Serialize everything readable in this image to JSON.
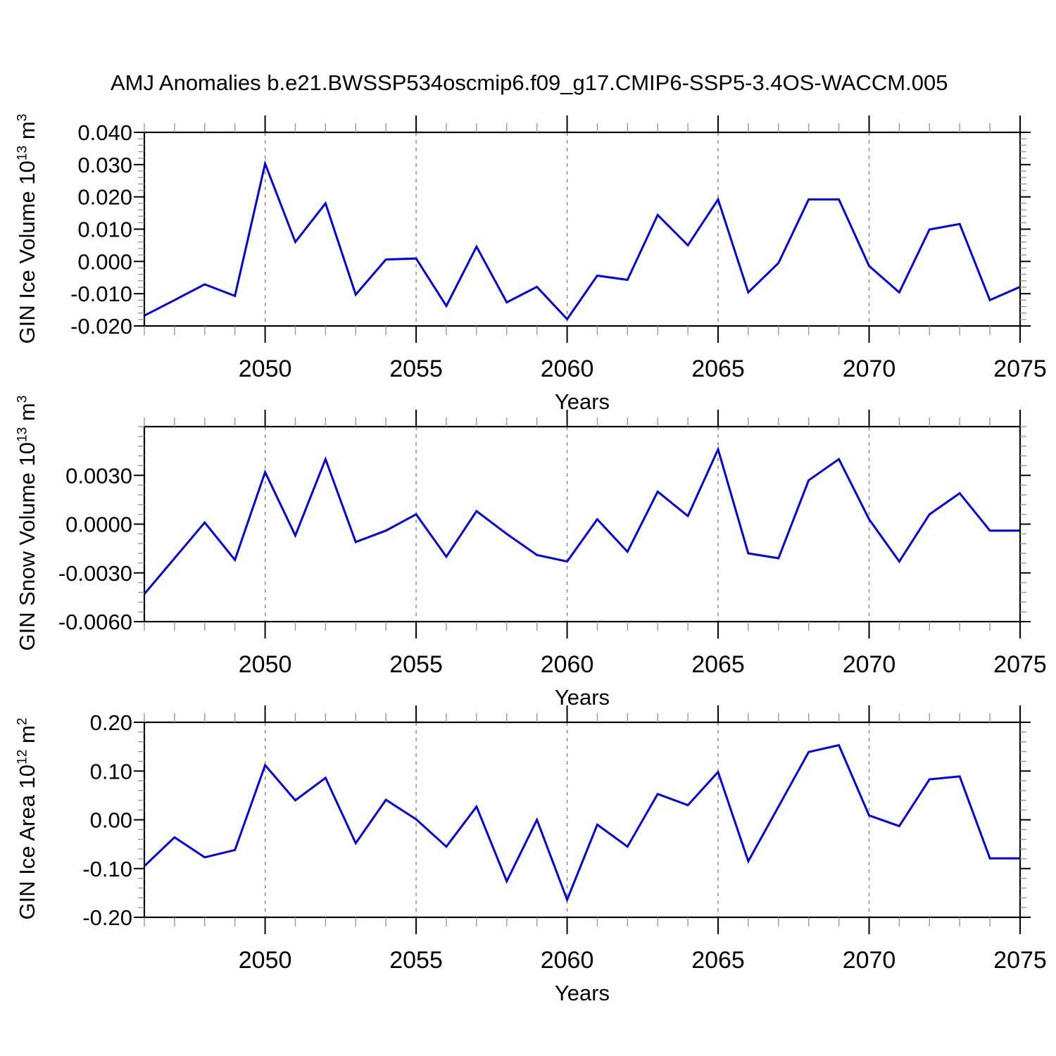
{
  "title": "AMJ Anomalies b.e21.BWSSP534oscmip6.f09_g17.CMIP6-SSP5-3.4OS-WACCM.005",
  "colors": {
    "line": "#0000e0",
    "grid": "#808080",
    "axis": "#000000",
    "minor_tick": "#999999",
    "text": "#000000"
  },
  "chart_data": [
    {
      "type": "line",
      "ylabel_main": "GIN Ice Volume 10",
      "ylabel_sup1": "13",
      "ylabel_mid": " m",
      "ylabel_sup2": "3",
      "xlabel": "Years",
      "x": [
        2046,
        2047,
        2048,
        2049,
        2050,
        2051,
        2052,
        2053,
        2054,
        2055,
        2056,
        2057,
        2058,
        2059,
        2060,
        2061,
        2062,
        2063,
        2064,
        2065,
        2066,
        2067,
        2068,
        2069,
        2070,
        2071,
        2072,
        2073,
        2074,
        2075
      ],
      "values": [
        -0.0168,
        -0.012,
        -0.0071,
        -0.0107,
        0.0303,
        0.006,
        0.018,
        -0.0103,
        0.0006,
        0.0009,
        -0.0138,
        0.0046,
        -0.0127,
        -0.0079,
        -0.0179,
        -0.0044,
        -0.0057,
        0.0144,
        0.005,
        0.0192,
        -0.0096,
        -0.0005,
        0.0192,
        0.0192,
        -0.0014,
        -0.0096,
        0.0099,
        0.0116,
        -0.012,
        -0.0079
      ],
      "xlim": [
        2046,
        2075
      ],
      "ylim": [
        -0.02,
        0.04
      ],
      "yticks": [
        0.04,
        0.03,
        0.02,
        0.01,
        0.0,
        -0.01,
        -0.02
      ],
      "ytick_labels": [
        "0.040",
        "0.030",
        "0.020",
        "0.010",
        "0.000",
        "-0.010",
        "-0.020"
      ],
      "ytick_minor_step": 0.002,
      "xticks": [
        2050,
        2055,
        2060,
        2065,
        2070,
        2075
      ],
      "xtick_labels": [
        "2050",
        "2055",
        "2060",
        "2065",
        "2070",
        "2075"
      ],
      "xtick_minor_step": 1,
      "grid_x": [
        2050,
        2055,
        2060,
        2065,
        2070
      ]
    },
    {
      "type": "line",
      "ylabel_main": "GIN Snow Volume 10",
      "ylabel_sup1": "13",
      "ylabel_mid": " m",
      "ylabel_sup2": "3",
      "xlabel": "Years",
      "x": [
        2046,
        2047,
        2048,
        2049,
        2050,
        2051,
        2052,
        2053,
        2054,
        2055,
        2056,
        2057,
        2058,
        2059,
        2060,
        2061,
        2062,
        2063,
        2064,
        2065,
        2066,
        2067,
        2068,
        2069,
        2070,
        2071,
        2072,
        2073,
        2074,
        2075
      ],
      "values": [
        -0.0043,
        -0.0021,
        0.0001,
        -0.0022,
        0.0032,
        -0.0007,
        0.004,
        -0.0011,
        -0.0004,
        0.0006,
        -0.002,
        0.0008,
        -0.0006,
        -0.0019,
        -0.0023,
        0.0003,
        -0.0017,
        0.002,
        0.0005,
        0.0046,
        -0.0018,
        -0.0021,
        0.0027,
        0.004,
        0.0003,
        -0.0023,
        0.0006,
        0.0019,
        -0.0004,
        -0.0004
      ],
      "xlim": [
        2046,
        2075
      ],
      "ylim": [
        -0.006,
        0.006
      ],
      "yticks": [
        0.003,
        0.0,
        -0.003,
        -0.006
      ],
      "ytick_labels": [
        "0.0030",
        "0.0000",
        "-0.0030",
        "-0.0060"
      ],
      "ytick_minor_step": 0.0006,
      "xticks": [
        2050,
        2055,
        2060,
        2065,
        2070,
        2075
      ],
      "xtick_labels": [
        "2050",
        "2055",
        "2060",
        "2065",
        "2070",
        "2075"
      ],
      "xtick_minor_step": 1,
      "grid_x": [
        2050,
        2055,
        2060,
        2065,
        2070
      ]
    },
    {
      "type": "line",
      "ylabel_main": "GIN Ice Area 10",
      "ylabel_sup1": "12",
      "ylabel_mid": " m",
      "ylabel_sup2": "2",
      "xlabel": "Years",
      "x": [
        2046,
        2047,
        2048,
        2049,
        2050,
        2051,
        2052,
        2053,
        2054,
        2055,
        2056,
        2057,
        2058,
        2059,
        2060,
        2061,
        2062,
        2063,
        2064,
        2065,
        2066,
        2067,
        2068,
        2069,
        2070,
        2071,
        2072,
        2073,
        2074,
        2075
      ],
      "values": [
        -0.095,
        -0.036,
        -0.077,
        -0.062,
        0.112,
        0.04,
        0.086,
        -0.048,
        0.041,
        0.001,
        -0.055,
        0.027,
        -0.126,
        0.0,
        -0.164,
        -0.01,
        -0.055,
        0.053,
        0.03,
        0.098,
        -0.085,
        0.027,
        0.139,
        0.153,
        0.009,
        -0.013,
        0.083,
        0.089,
        -0.079,
        -0.079
      ],
      "xlim": [
        2046,
        2075
      ],
      "ylim": [
        -0.2,
        0.2
      ],
      "yticks": [
        0.2,
        0.1,
        0.0,
        -0.1,
        -0.2
      ],
      "ytick_labels": [
        "0.20",
        "0.10",
        "0.00",
        "-0.10",
        "-0.20"
      ],
      "ytick_minor_step": 0.02,
      "xticks": [
        2050,
        2055,
        2060,
        2065,
        2070,
        2075
      ],
      "xtick_labels": [
        "2050",
        "2055",
        "2060",
        "2065",
        "2070",
        "2075"
      ],
      "xtick_minor_step": 1,
      "grid_x": [
        2050,
        2055,
        2060,
        2065,
        2070
      ]
    }
  ]
}
